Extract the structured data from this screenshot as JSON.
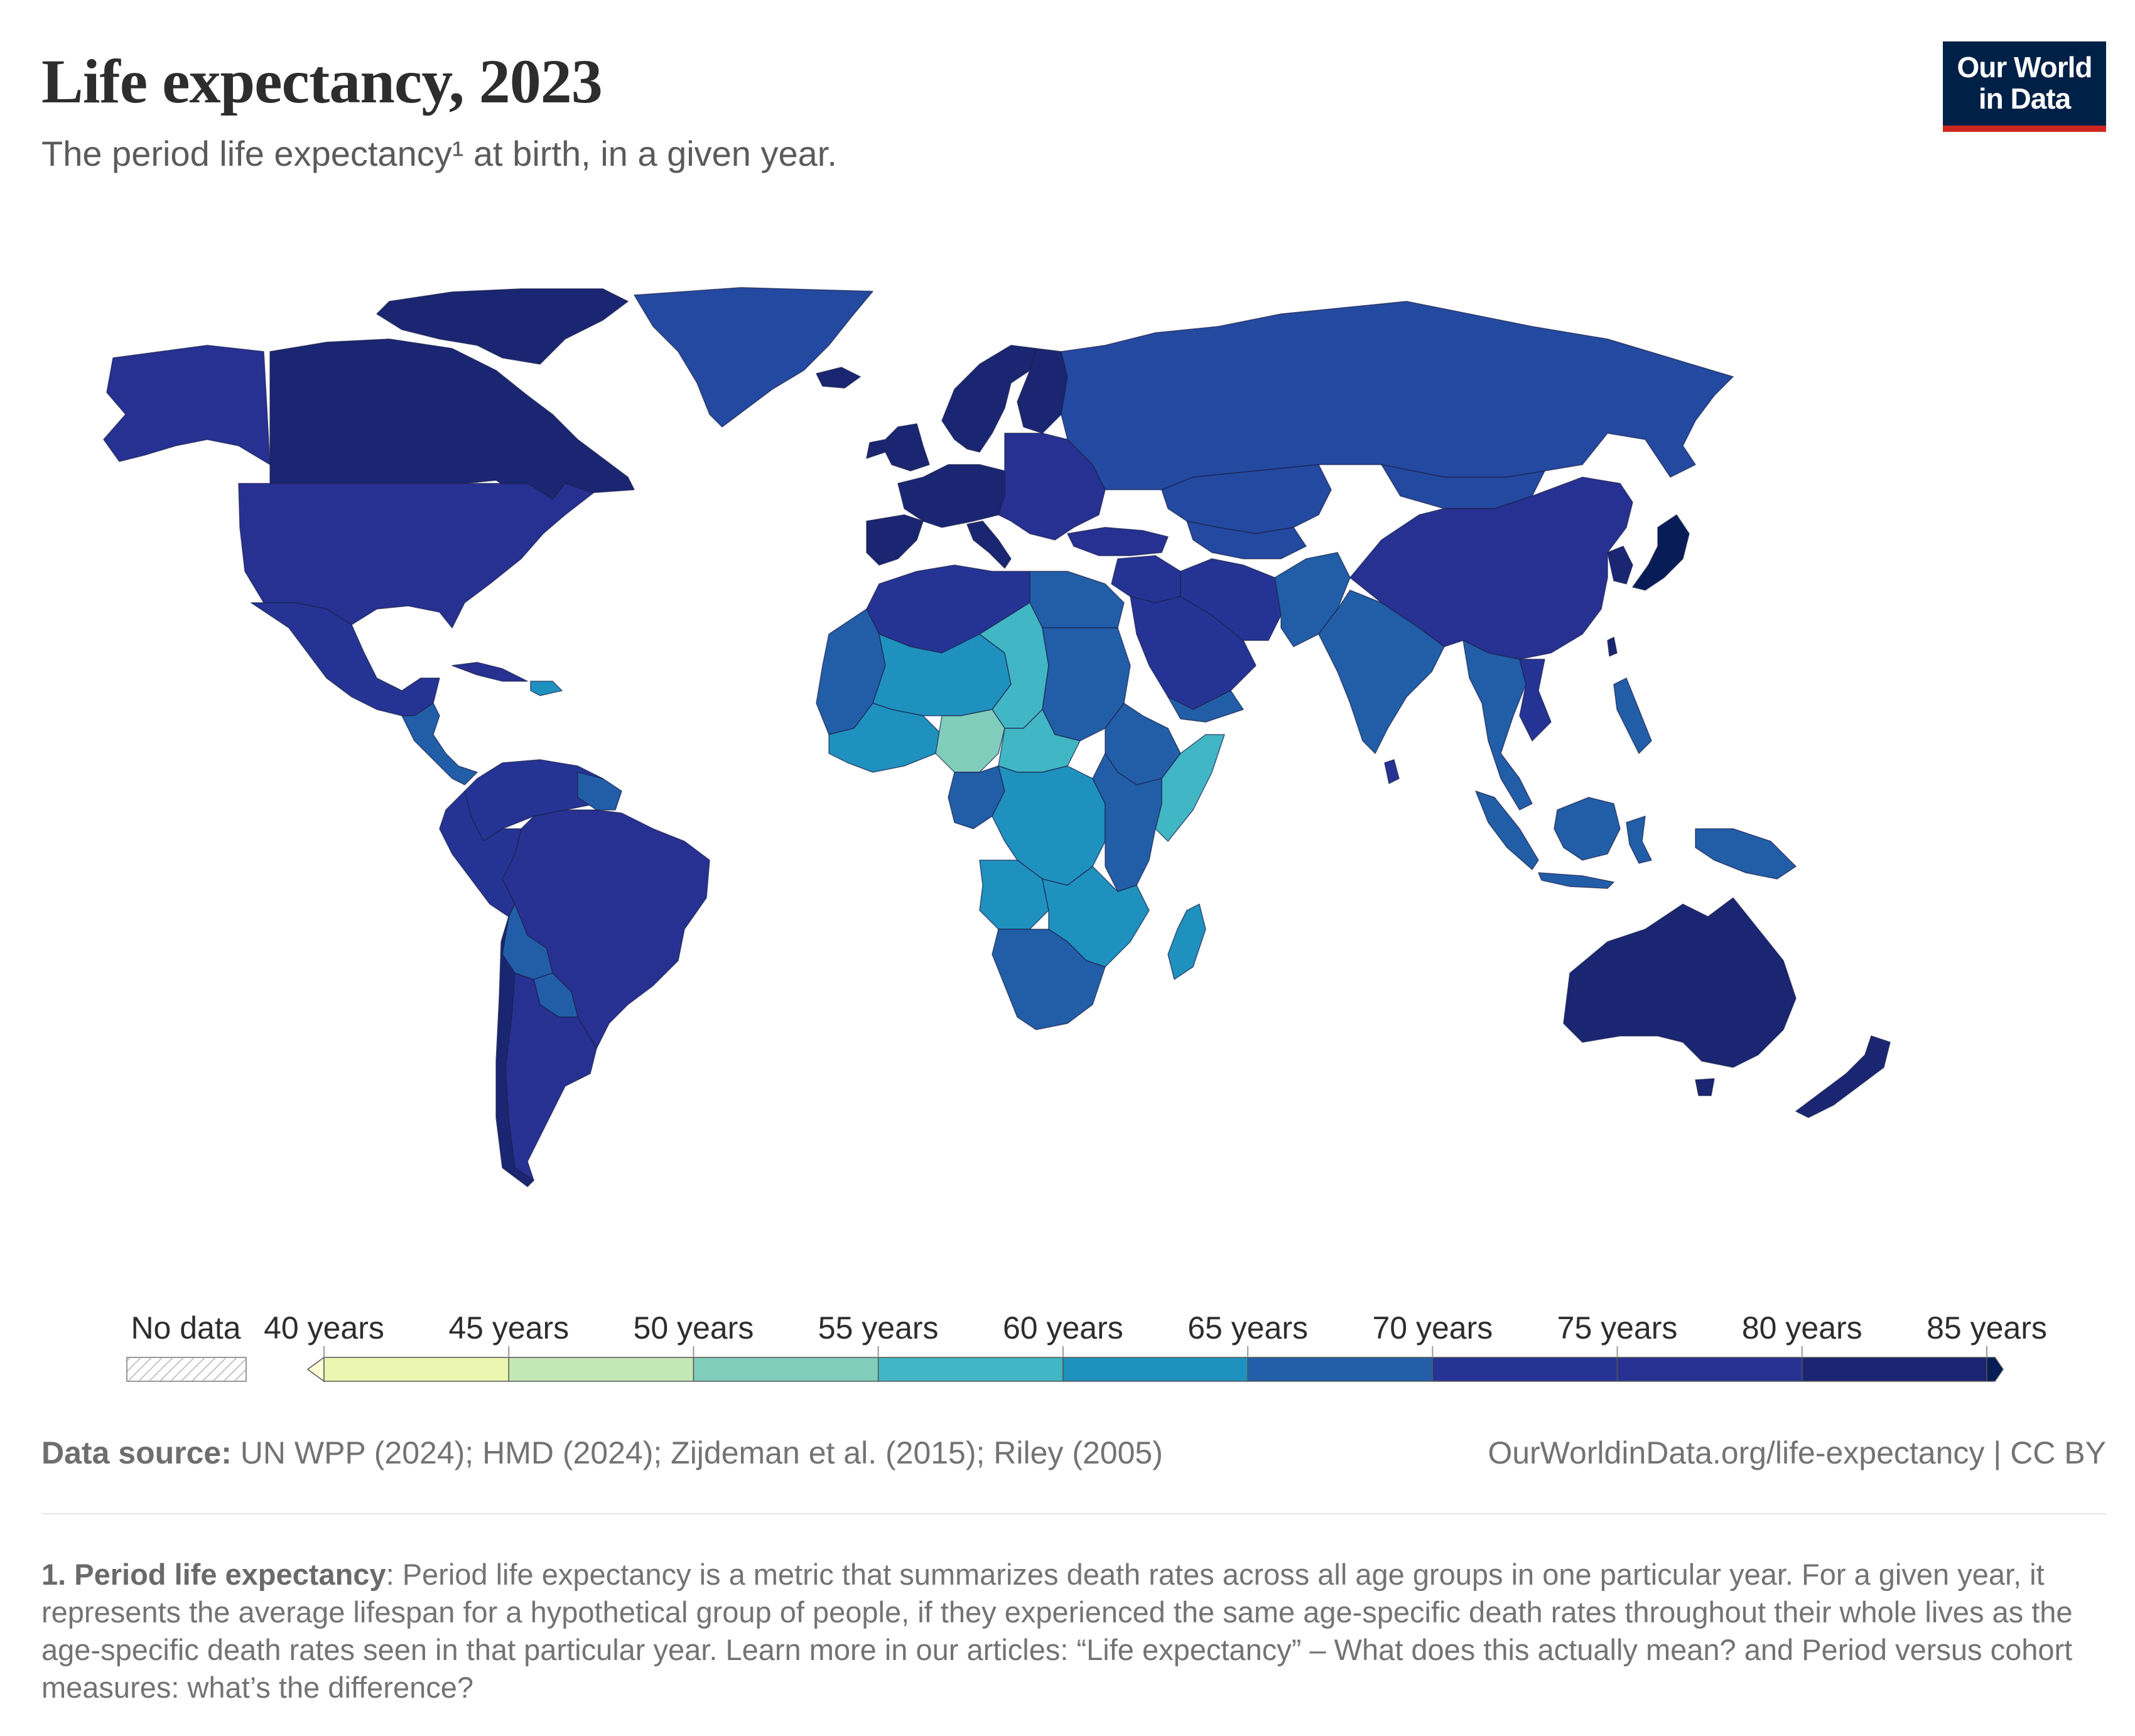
{
  "title": "Life expectancy, 2023",
  "subtitle": "The period life expectancy¹ at birth, in a given year.",
  "logo": {
    "line1": "Our World",
    "line2": "in Data"
  },
  "legend": {
    "no_data_label": "No data",
    "bin_labels": [
      "40 years",
      "45 years",
      "50 years",
      "55 years",
      "60 years",
      "65 years",
      "70 years",
      "75 years",
      "80 years",
      "85 years"
    ],
    "colors": [
      "#feffd9",
      "#ebf7b1",
      "#c4e7b6",
      "#80cdbb",
      "#41b6c5",
      "#1f91bf",
      "#225ea8",
      "#253494",
      "#273192",
      "#1a2672",
      "#081d58"
    ]
  },
  "source": {
    "label": "Data source:",
    "text": " UN WPP (2024); HMD (2024); Zijdeman et al. (2015); Riley (2005)",
    "url_license": "OurWorldinData.org/life-expectancy | CC BY"
  },
  "footnote": {
    "term": "1. Period life expectancy",
    "text": ": Period life expectancy is a metric that summarizes death rates across all age groups in one particular year. For a given year, it represents the average lifespan for a hypothetical group of people, if they experienced the same age-specific death rates throughout their whole lives as the age-specific death rates seen in that particular year. Learn more in our articles: “Life expectancy” – What does this actually mean? and Period versus cohort measures: what’s the difference?"
  },
  "map": {
    "regions": [
      {
        "id": "greenland",
        "color": "#2449a0"
      },
      {
        "id": "alaska",
        "color": "#273192"
      },
      {
        "id": "canada",
        "color": "#1a2672"
      },
      {
        "id": "canada-arctic-islands",
        "color": "#1a2672"
      },
      {
        "id": "usa",
        "color": "#273192"
      },
      {
        "id": "mexico",
        "color": "#253494"
      },
      {
        "id": "central-america",
        "color": "#225ea8"
      },
      {
        "id": "cuba",
        "color": "#273192"
      },
      {
        "id": "hispaniola",
        "color": "#1f91bf"
      },
      {
        "id": "colombia-venezuela",
        "color": "#253494"
      },
      {
        "id": "guianas",
        "color": "#225ea8"
      },
      {
        "id": "brazil",
        "color": "#273192"
      },
      {
        "id": "peru-ecuador",
        "color": "#253494"
      },
      {
        "id": "bolivia",
        "color": "#225ea8"
      },
      {
        "id": "paraguay",
        "color": "#225ea8"
      },
      {
        "id": "chile",
        "color": "#1a2672"
      },
      {
        "id": "argentina",
        "color": "#273192"
      },
      {
        "id": "iceland",
        "color": "#1a2672"
      },
      {
        "id": "scandinavia",
        "color": "#1a2672"
      },
      {
        "id": "finland",
        "color": "#1a2672"
      },
      {
        "id": "uk-ireland",
        "color": "#1a2672"
      },
      {
        "id": "western-europe",
        "color": "#1a2672"
      },
      {
        "id": "iberia",
        "color": "#1a2672"
      },
      {
        "id": "italy",
        "color": "#1a2672"
      },
      {
        "id": "eastern-europe",
        "color": "#273192"
      },
      {
        "id": "russia",
        "color": "#2449a0"
      },
      {
        "id": "turkey",
        "color": "#273192"
      },
      {
        "id": "kazakhstan",
        "color": "#2449a0"
      },
      {
        "id": "central-asia",
        "color": "#2449a0"
      },
      {
        "id": "middle-east",
        "color": "#253494"
      },
      {
        "id": "arabia",
        "color": "#253494"
      },
      {
        "id": "yemen",
        "color": "#225ea8"
      },
      {
        "id": "iran",
        "color": "#253494"
      },
      {
        "id": "afghanistan-pakistan",
        "color": "#225ea8"
      },
      {
        "id": "india",
        "color": "#225ea8"
      },
      {
        "id": "china",
        "color": "#273192"
      },
      {
        "id": "mongolia",
        "color": "#2449a0"
      },
      {
        "id": "korea",
        "color": "#1a2672"
      },
      {
        "id": "japan",
        "color": "#081d58"
      },
      {
        "id": "southeast-asia",
        "color": "#225ea8"
      },
      {
        "id": "vietnam",
        "color": "#253494"
      },
      {
        "id": "sri-lanka",
        "color": "#253494"
      },
      {
        "id": "sumatra",
        "color": "#225ea8"
      },
      {
        "id": "java",
        "color": "#225ea8"
      },
      {
        "id": "borneo",
        "color": "#225ea8"
      },
      {
        "id": "sulawesi",
        "color": "#225ea8"
      },
      {
        "id": "philippines",
        "color": "#225ea8"
      },
      {
        "id": "taiwan",
        "color": "#1a2672"
      },
      {
        "id": "new-guinea",
        "color": "#225ea8"
      },
      {
        "id": "australia",
        "color": "#1a2672"
      },
      {
        "id": "tasmania",
        "color": "#1a2672"
      },
      {
        "id": "new-zealand",
        "color": "#1a2672"
      },
      {
        "id": "north-africa",
        "color": "#253494"
      },
      {
        "id": "egypt",
        "color": "#225ea8"
      },
      {
        "id": "west-sahel",
        "color": "#225ea8"
      },
      {
        "id": "mali-niger",
        "color": "#1f91bf"
      },
      {
        "id": "chad",
        "color": "#41b6c5"
      },
      {
        "id": "sudan",
        "color": "#225ea8"
      },
      {
        "id": "west-africa-coast",
        "color": "#1f91bf"
      },
      {
        "id": "nigeria",
        "color": "#80cdbb"
      },
      {
        "id": "central-african-rep",
        "color": "#41b6c5"
      },
      {
        "id": "ethiopia",
        "color": "#225ea8"
      },
      {
        "id": "somalia",
        "color": "#41b6c5"
      },
      {
        "id": "congo-basin",
        "color": "#1f91bf"
      },
      {
        "id": "gabon-congo",
        "color": "#225ea8"
      },
      {
        "id": "east-africa",
        "color": "#225ea8"
      },
      {
        "id": "angola",
        "color": "#1f91bf"
      },
      {
        "id": "zambia-mozambique",
        "color": "#1f91bf"
      },
      {
        "id": "southern-africa",
        "color": "#225ea8"
      },
      {
        "id": "madagascar",
        "color": "#1f91bf"
      }
    ]
  }
}
